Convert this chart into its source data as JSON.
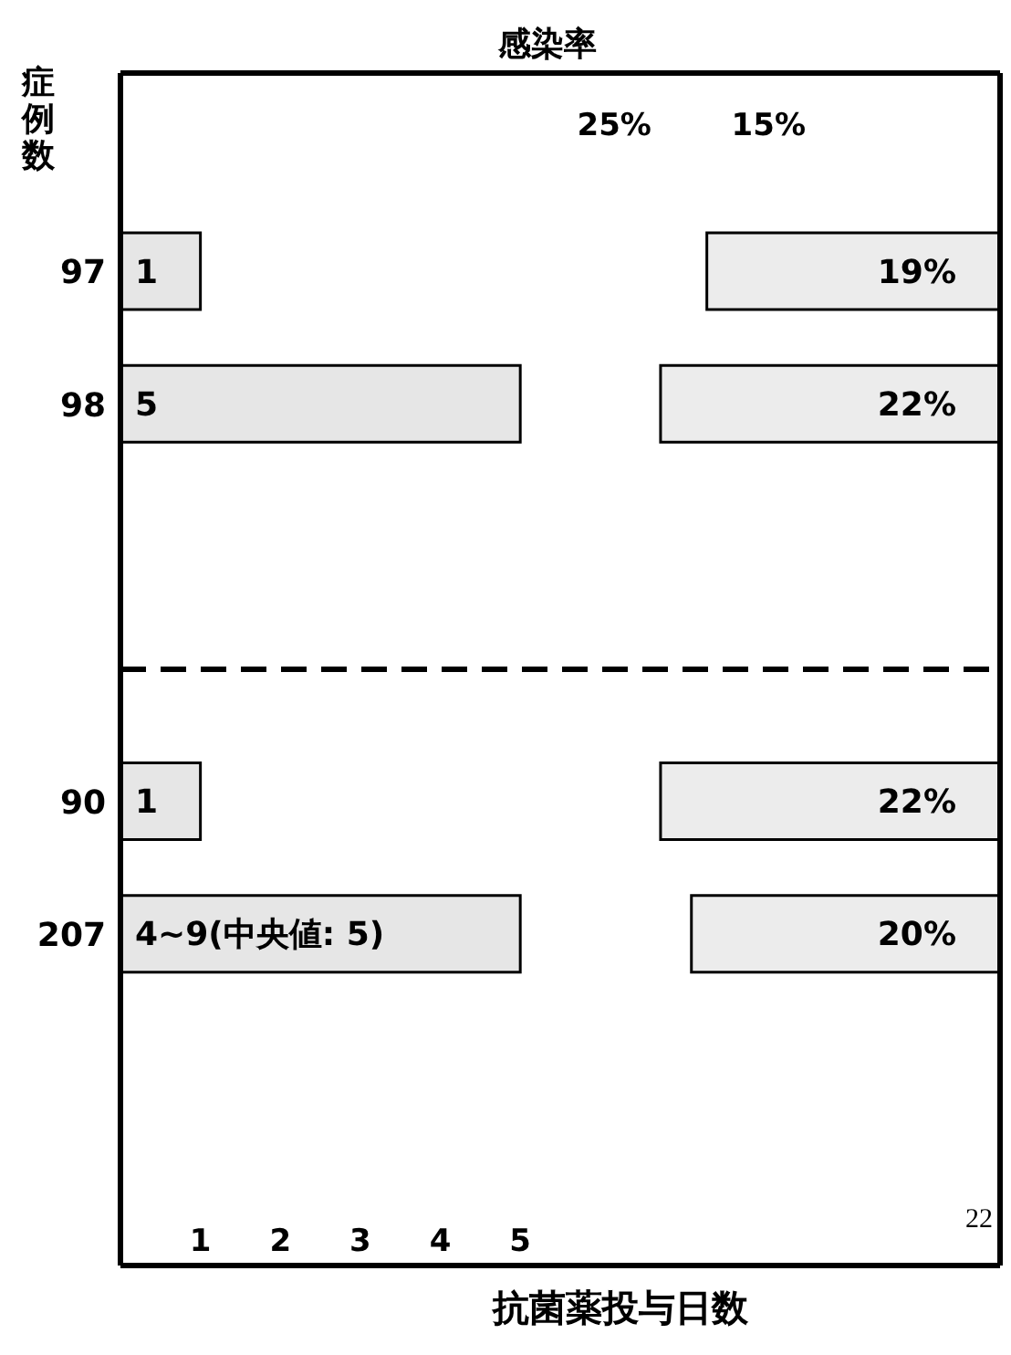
{
  "chart_data": {
    "type": "bar",
    "orientation": "horizontal",
    "ylabel": "症例数",
    "xlabel": "抗菌薬投与日数",
    "x2label": "感染率",
    "categories": [
      null,
      "97",
      "98",
      null,
      null,
      "90",
      "207",
      null,
      null
    ],
    "series": [
      {
        "color": "#e6e6e6",
        "values": [
          null,
          1,
          5,
          null,
          null,
          1,
          5,
          null,
          null
        ],
        "value_labels": [
          null,
          "1",
          "5",
          null,
          null,
          "1",
          "4~9(中央値: 5)",
          null,
          null
        ]
      },
      {
        "color": "#ececec",
        "axis": "x2",
        "values": [
          null,
          19,
          22,
          null,
          null,
          22,
          20,
          null,
          null
        ],
        "value_labels": [
          null,
          "19%",
          "22%",
          null,
          null,
          "22%",
          "20%",
          null,
          null
        ]
      }
    ],
    "xlim": [
      0,
      11
    ],
    "xticks": [
      1,
      2,
      3,
      4,
      5
    ],
    "x2lim": [
      57,
      0
    ],
    "x2ticks": [
      {
        "value": 25,
        "label": "25%"
      },
      {
        "value": 15,
        "label": "15%"
      }
    ],
    "annotations": [
      "22"
    ],
    "ref_lines": [
      {
        "axis": "y",
        "value": null,
        "line_style": "dashed",
        "color": "#000000"
      }
    ],
    "grid": false,
    "legend": false
  }
}
